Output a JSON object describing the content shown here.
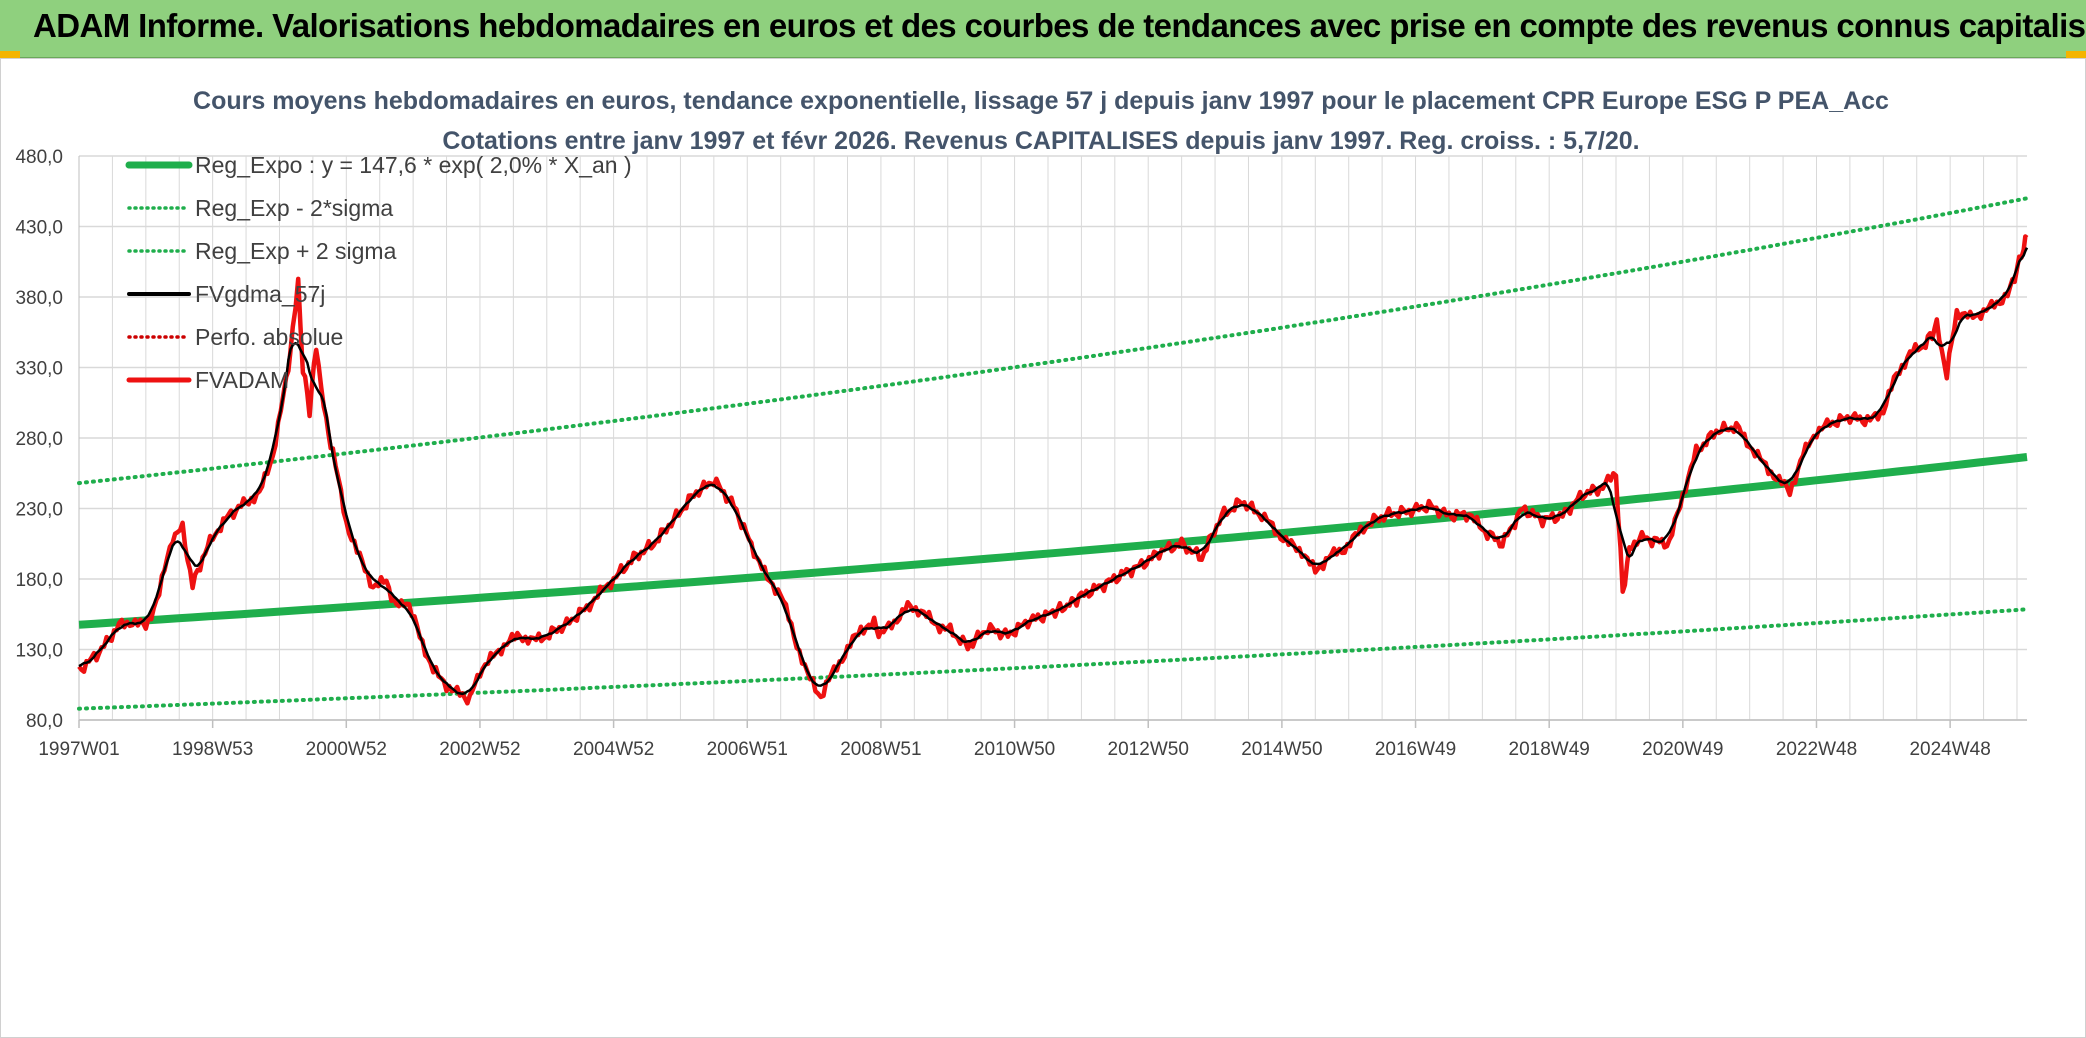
{
  "banner": {
    "title": "ADAM Informe. Valorisations hebdomadaires en euros et des courbes de tendances avec prise en compte des revenus connus capitalisés"
  },
  "colors": {
    "banner_bg": "#8fd07e",
    "reg_expo": "#1fae4c",
    "sigma": "#1fae4c",
    "fvgdma": "#000000",
    "perfo": "#cc0000",
    "fvadam": "#ee1111",
    "grid": "#d9d9d9",
    "title_text": "#44546a"
  },
  "chart_data": {
    "type": "line",
    "title_line1": "Cours moyens hebdomadaires en euros, tendance exponentielle, lissage 57 j depuis janv 1997 pour le placement CPR Europe ESG P PEA_Acc",
    "title_line2": "Cotations entre janv 1997 et févr 2026. Revenus CAPITALISES depuis janv 1997. Reg. croiss. : 5,7/20.",
    "xlabel": "",
    "ylabel": "",
    "ylim": [
      80,
      480
    ],
    "xlim": [
      1997.0,
      2026.15
    ],
    "yticks": [
      "480,0",
      "430,0",
      "380,0",
      "330,0",
      "280,0",
      "230,0",
      "180,0",
      "130,0",
      "80,0"
    ],
    "ytick_values": [
      480,
      430,
      380,
      330,
      280,
      230,
      180,
      130,
      80
    ],
    "xticks": [
      "1997W01",
      "1998W53",
      "2000W52",
      "2002W52",
      "2004W52",
      "2006W51",
      "2008W51",
      "2010W50",
      "2012W50",
      "2014W50",
      "2016W49",
      "2018W49",
      "2020W49",
      "2022W48",
      "2024W48"
    ],
    "xtick_values": [
      1997.0,
      1999.0,
      2001.0,
      2003.0,
      2005.0,
      2007.0,
      2009.0,
      2011.0,
      2013.0,
      2015.0,
      2017.0,
      2019.0,
      2021.0,
      2023.0,
      2025.0
    ],
    "legend": [
      {
        "name": "Reg_Expo : y = 147,6 * exp( 2,0% *  X_an )",
        "style": "thick-solid",
        "color": "#1fae4c"
      },
      {
        "name": "Reg_Exp - 2*sigma",
        "style": "dotted",
        "color": "#1fae4c"
      },
      {
        "name": "Reg_Exp + 2 sigma",
        "style": "dotted",
        "color": "#1fae4c"
      },
      {
        "name": "FVgdma_57j",
        "style": "solid",
        "color": "#000000"
      },
      {
        "name": "Perfo. absolue",
        "style": "dotted",
        "color": "#cc0000"
      },
      {
        "name": "FVADAM",
        "style": "thick-solid",
        "color": "#ee1111"
      }
    ],
    "series": [
      {
        "name": "Reg_Expo",
        "x": [
          1997.0,
          2026.15
        ],
        "start": 147.6,
        "end": 266.5,
        "model": "exp"
      },
      {
        "name": "Reg_Exp - 2*sigma",
        "x": [
          1997.0,
          2026.15
        ],
        "start": 88.0,
        "end": 158.5,
        "model": "exp"
      },
      {
        "name": "Reg_Exp + 2 sigma",
        "x": [
          1997.0,
          2026.15
        ],
        "start": 248.0,
        "end": 450.0,
        "model": "exp"
      },
      {
        "name": "FVADAM",
        "x": [
          1997.0,
          1997.3,
          1997.6,
          1997.8,
          1998.0,
          1998.2,
          1998.4,
          1998.55,
          1998.7,
          1998.85,
          1999.0,
          1999.2,
          1999.5,
          1999.7,
          1999.9,
          2000.1,
          2000.2,
          2000.28,
          2000.35,
          2000.45,
          2000.55,
          2000.7,
          2000.8,
          2001.0,
          2001.2,
          2001.4,
          2001.6,
          2001.75,
          2001.9,
          2002.1,
          2002.3,
          2002.5,
          2002.7,
          2002.85,
          2003.0,
          2003.2,
          2003.4,
          2003.6,
          2003.8,
          2004.0,
          2004.3,
          2004.6,
          2005.0,
          2005.3,
          2005.6,
          2005.9,
          2006.2,
          2006.5,
          2006.8,
          2007.1,
          2007.3,
          2007.5,
          2007.7,
          2007.9,
          2008.1,
          2008.3,
          2008.5,
          2008.7,
          2008.9,
          2009.0,
          2009.2,
          2009.4,
          2009.6,
          2009.8,
          2010.0,
          2010.3,
          2010.6,
          2010.9,
          2011.2,
          2011.5,
          2011.75,
          2012.0,
          2012.3,
          2012.6,
          2012.9,
          2013.2,
          2013.5,
          2013.8,
          2014.1,
          2014.4,
          2014.7,
          2014.9,
          2015.1,
          2015.3,
          2015.5,
          2015.7,
          2015.9,
          2016.1,
          2016.3,
          2016.6,
          2016.9,
          2017.2,
          2017.5,
          2017.8,
          2018.0,
          2018.3,
          2018.6,
          2018.9,
          2019.2,
          2019.5,
          2019.8,
          2020.0,
          2020.1,
          2020.2,
          2020.35,
          2020.5,
          2020.8,
          2021.0,
          2021.2,
          2021.5,
          2021.8,
          2022.0,
          2022.2,
          2022.4,
          2022.6,
          2022.8,
          2023.0,
          2023.2,
          2023.5,
          2023.8,
          2024.0,
          2024.2,
          2024.4,
          2024.6,
          2024.7,
          2024.8,
          2024.95,
          2025.1,
          2025.3,
          2025.5,
          2025.7,
          2025.9,
          2026.0,
          2026.1,
          2026.15
        ],
        "values": [
          115,
          128,
          147,
          150,
          146,
          170,
          210,
          216,
          175,
          195,
          210,
          223,
          235,
          240,
          268,
          320,
          355,
          390,
          330,
          300,
          345,
          290,
          270,
          220,
          195,
          175,
          178,
          160,
          165,
          140,
          115,
          105,
          98,
          95,
          115,
          125,
          135,
          140,
          136,
          140,
          148,
          160,
          180,
          195,
          205,
          222,
          240,
          250,
          232,
          200,
          180,
          170,
          140,
          112,
          97,
          115,
          130,
          145,
          148,
          140,
          150,
          160,
          158,
          148,
          145,
          132,
          145,
          140,
          150,
          155,
          160,
          168,
          175,
          183,
          190,
          200,
          205,
          195,
          225,
          235,
          225,
          215,
          205,
          200,
          185,
          196,
          200,
          210,
          220,
          226,
          228,
          232,
          225,
          226,
          215,
          205,
          230,
          222,
          225,
          240,
          245,
          255,
          170,
          200,
          210,
          208,
          205,
          240,
          270,
          285,
          288,
          275,
          262,
          252,
          242,
          268,
          285,
          290,
          295,
          292,
          300,
          325,
          340,
          345,
          352,
          360,
          325,
          370,
          365,
          370,
          375,
          385,
          400,
          415,
          422
        ],
        "smooth_of": null
      },
      {
        "name": "FVgdma_57j",
        "smooth_of": "FVADAM"
      }
    ]
  }
}
